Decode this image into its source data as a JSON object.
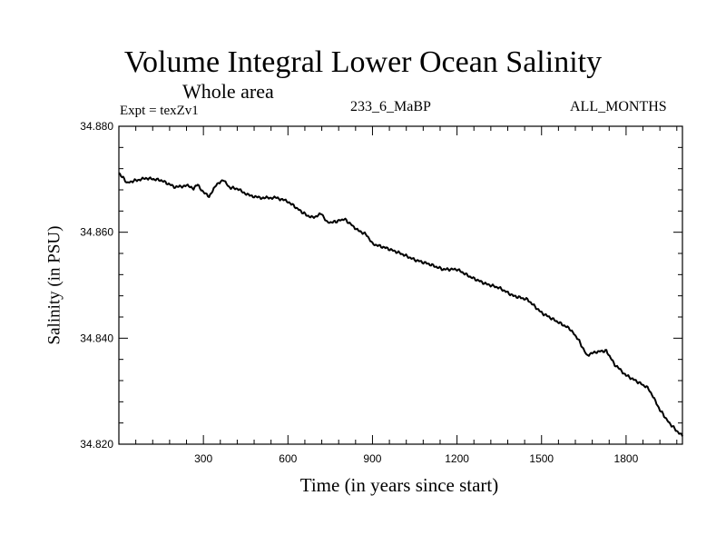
{
  "chart_data": {
    "type": "line",
    "title": "Volume Integral Lower Ocean Salinity",
    "subtitle": "Whole area",
    "experiment": "Expt = texZv1",
    "run_label": "233_6_MaBP",
    "months_label": "ALL_MONTHS",
    "xlabel": "Time (in years since start)",
    "ylabel": "Salinity (in PSU)",
    "xlim": [
      0,
      2000
    ],
    "ylim": [
      34.82,
      34.88
    ],
    "xticks": [
      300,
      600,
      900,
      1200,
      1500,
      1800
    ],
    "xtick_labels": [
      "300",
      "600",
      "900",
      "1200",
      "1500",
      "1800"
    ],
    "yticks": [
      34.82,
      34.84,
      34.86,
      34.88
    ],
    "ytick_labels": [
      "34.820",
      "34.840",
      "34.860",
      "34.880"
    ],
    "grid": false,
    "series": [
      {
        "name": "Salinity",
        "x": [
          0,
          30,
          60,
          100,
          150,
          200,
          240,
          265,
          280,
          300,
          320,
          345,
          370,
          390,
          420,
          460,
          500,
          560,
          600,
          620,
          650,
          680,
          700,
          720,
          740,
          770,
          800,
          830,
          850,
          880,
          900,
          950,
          1000,
          1050,
          1100,
          1150,
          1200,
          1250,
          1300,
          1350,
          1400,
          1450,
          1500,
          1550,
          1600,
          1630,
          1660,
          1700,
          1730,
          1760,
          1800,
          1850,
          1880,
          1900,
          1920,
          1950,
          1980,
          2000
        ],
        "values": [
          34.8712,
          34.8693,
          34.8698,
          34.8702,
          34.8698,
          34.8685,
          34.8688,
          34.8683,
          34.869,
          34.8675,
          34.8668,
          34.8688,
          34.87,
          34.8685,
          34.8682,
          34.867,
          34.8665,
          34.8665,
          34.8658,
          34.865,
          34.8638,
          34.8628,
          34.863,
          34.8635,
          34.8618,
          34.862,
          34.8625,
          34.8612,
          34.8603,
          34.8595,
          34.8578,
          34.857,
          34.856,
          34.8548,
          34.854,
          34.853,
          34.853,
          34.8515,
          34.8503,
          34.8495,
          34.848,
          34.8473,
          34.8448,
          34.8433,
          34.8418,
          34.8398,
          34.8368,
          34.8375,
          34.8376,
          34.835,
          34.833,
          34.8315,
          34.8305,
          34.8285,
          34.8265,
          34.8242,
          34.8225,
          34.8215
        ]
      }
    ]
  }
}
